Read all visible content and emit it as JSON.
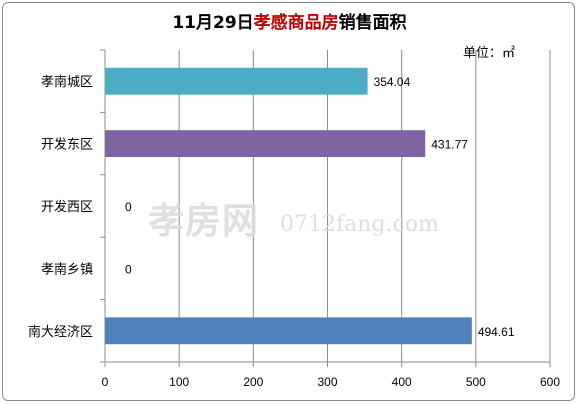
{
  "chart_data": {
    "type": "bar",
    "orientation": "horizontal",
    "title_parts": [
      {
        "text": "11月29日",
        "highlight": false
      },
      {
        "text": "孝感商品房",
        "highlight": true
      },
      {
        "text": "销售面积",
        "highlight": false
      }
    ],
    "unit_label": "单位：㎡",
    "categories": [
      "孝南城区",
      "开发东区",
      "开发西区",
      "孝南乡镇",
      "南大经济区"
    ],
    "values": [
      354.04,
      431.77,
      0,
      0,
      494.61
    ],
    "value_labels": [
      "354.04",
      "431.77",
      "0",
      "0",
      "494.61"
    ],
    "bar_colors": [
      "#4bacc6",
      "#8064a2",
      "#4f81bd",
      "#4f81bd",
      "#4f81bd"
    ],
    "xlim": [
      0,
      600
    ],
    "xticks": [
      0,
      100,
      200,
      300,
      400,
      500,
      600
    ],
    "grid": true,
    "legend": "none"
  },
  "watermark": {
    "cn_text": "孝房网",
    "domain_text": "0712fang.com"
  },
  "colors": {
    "title_highlight": "#c00000",
    "grid": "#8c8c8c",
    "axis": "#8c8c8c",
    "watermark": "#d9d9d9"
  }
}
